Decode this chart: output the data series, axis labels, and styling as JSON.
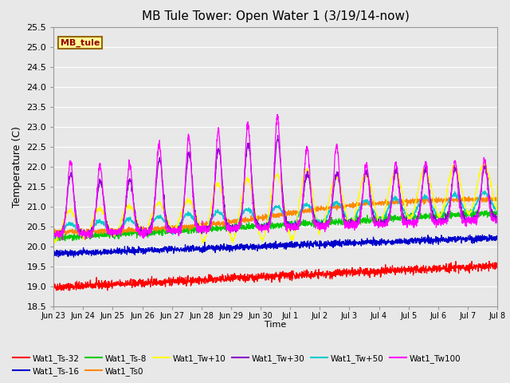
{
  "title": "MB Tule Tower: Open Water 1 (3/19/14-now)",
  "xlabel": "Time",
  "ylabel": "Temperature (C)",
  "ylim": [
    18.5,
    25.5
  ],
  "yticks": [
    18.5,
    19.0,
    19.5,
    20.0,
    20.5,
    21.0,
    21.5,
    22.0,
    22.5,
    23.0,
    23.5,
    24.0,
    24.5,
    25.0,
    25.5
  ],
  "xtick_labels": [
    "Jun 23",
    "Jun 24",
    "Jun 25",
    "Jun 26",
    "Jun 27",
    "Jun 28",
    "Jun 29",
    "Jun 30",
    "Jul 1",
    "Jul 2",
    "Jul 3",
    "Jul 4",
    "Jul 5",
    "Jul 6",
    "Jul 7",
    "Jul 8"
  ],
  "bg_color": "#e8e8e8",
  "plot_bg_color": "#e8e8e8",
  "grid_color": "#ffffff",
  "series": [
    {
      "label": "Wat1_Ts-32",
      "color": "#ff0000"
    },
    {
      "label": "Wat1_Ts-16",
      "color": "#0000cc"
    },
    {
      "label": "Wat1_Ts-8",
      "color": "#00cc00"
    },
    {
      "label": "Wat1_Ts0",
      "color": "#ff8800"
    },
    {
      "label": "Wat1_Tw+10",
      "color": "#ffff00"
    },
    {
      "label": "Wat1_Tw+30",
      "color": "#8800cc"
    },
    {
      "label": "Wat1_Tw+50",
      "color": "#00cccc"
    },
    {
      "label": "Wat1_Tw100",
      "color": "#ff00ff"
    }
  ],
  "annotation_text": "MB_tule",
  "annotation_box_color": "#ffff99",
  "annotation_border_color": "#996600",
  "annotation_text_color": "#990000"
}
